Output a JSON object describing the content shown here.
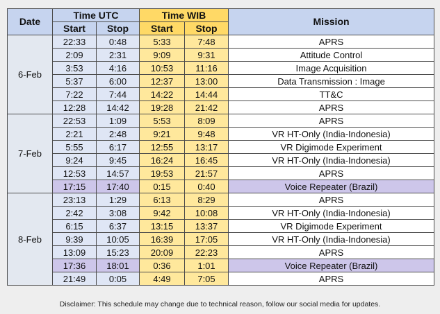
{
  "header": {
    "date": "Date",
    "time_utc": "Time UTC",
    "time_wib": "Time WIB",
    "mission": "Mission",
    "utc_start": "Start",
    "utc_stop": "Stop",
    "wib_start": "Start",
    "wib_stop": "Stop"
  },
  "schedule": [
    {
      "date": "6-Feb",
      "rows": [
        {
          "cells": [
            "22:33",
            "0:48",
            "5:33",
            "7:48",
            "APRS"
          ]
        },
        {
          "cells": [
            "2:09",
            "2:31",
            "9:09",
            "9:31",
            "Attitude Control"
          ]
        },
        {
          "cells": [
            "3:53",
            "4:16",
            "10:53",
            "11:16",
            "Image Acquisition"
          ]
        },
        {
          "cells": [
            "5:37",
            "6:00",
            "12:37",
            "13:00",
            "Data Transmission : Image"
          ]
        },
        {
          "cells": [
            "7:22",
            "7:44",
            "14:22",
            "14:44",
            "TT&C"
          ]
        },
        {
          "cells": [
            "12:28",
            "14:42",
            "19:28",
            "21:42",
            "APRS"
          ]
        }
      ]
    },
    {
      "date": "7-Feb",
      "rows": [
        {
          "cells": [
            "22:53",
            "1:09",
            "5:53",
            "8:09",
            "APRS"
          ]
        },
        {
          "cells": [
            "2:21",
            "2:48",
            "9:21",
            "9:48",
            "VR HT-Only (India-Indonesia)"
          ]
        },
        {
          "cells": [
            "5:55",
            "6:17",
            "12:55",
            "13:17",
            "VR Digimode Experiment"
          ]
        },
        {
          "cells": [
            "9:24",
            "9:45",
            "16:24",
            "16:45",
            "VR HT-Only (India-Indonesia)"
          ]
        },
        {
          "cells": [
            "12:53",
            "14:57",
            "19:53",
            "21:57",
            "APRS"
          ]
        },
        {
          "cells": [
            "17:15",
            "17:40",
            "0:15",
            "0:40",
            "Voice Repeater (Brazil)"
          ],
          "color": "#cdc6ea"
        }
      ]
    },
    {
      "date": "8-Feb",
      "rows": [
        {
          "cells": [
            "23:13",
            "1:29",
            "6:13",
            "8:29",
            "APRS"
          ]
        },
        {
          "cells": [
            "2:42",
            "3:08",
            "9:42",
            "10:08",
            "VR HT-Only (India-Indonesia)"
          ]
        },
        {
          "cells": [
            "6:15",
            "6:37",
            "13:15",
            "13:37",
            "VR Digimode Experiment"
          ]
        },
        {
          "cells": [
            "9:39",
            "10:05",
            "16:39",
            "17:05",
            "VR HT-Only (India-Indonesia)"
          ]
        },
        {
          "cells": [
            "13:09",
            "15:23",
            "20:09",
            "22:23",
            "APRS"
          ]
        },
        {
          "cells": [
            "17:36",
            "18:01",
            "0:36",
            "1:01",
            "Voice Repeater (Brazil)"
          ],
          "color": "#cdc6ea"
        },
        {
          "cells": [
            "21:49",
            "0:05",
            "4:49",
            "7:05",
            "APRS"
          ]
        }
      ]
    }
  ],
  "disclaimer": "Disclaimer: This schedule may change due to technical reason, follow our social media for updates."
}
